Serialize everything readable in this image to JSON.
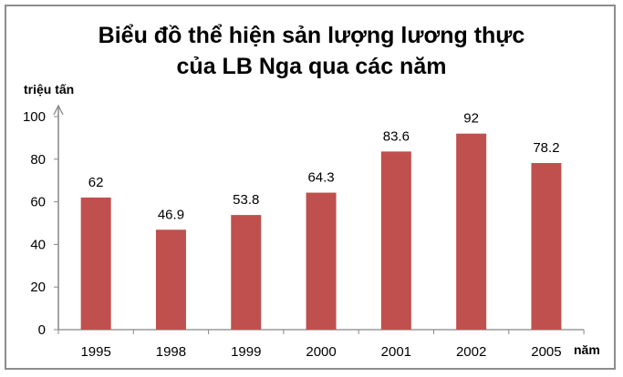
{
  "chart_data": {
    "type": "bar",
    "title": "Biểu đồ thể hiện sản lượng lương thực của LB Nga qua các năm",
    "title_lines": [
      "Biểu đồ thể hiện sản lượng lương thực",
      "của LB Nga qua các năm"
    ],
    "xlabel": "năm",
    "ylabel": "triệu tấn",
    "categories": [
      "1995",
      "1998",
      "1999",
      "2000",
      "2001",
      "2002",
      "2005"
    ],
    "values": [
      62,
      46.9,
      53.8,
      64.3,
      83.6,
      92,
      78.2
    ],
    "value_labels": [
      "62",
      "46.9",
      "53.8",
      "64.3",
      "83.6",
      "92",
      "78.2"
    ],
    "ylim": [
      0,
      100
    ],
    "yticks": [
      0,
      20,
      40,
      60,
      80,
      100
    ],
    "grid": false,
    "legend": null,
    "bar_color": "#C0504D"
  }
}
